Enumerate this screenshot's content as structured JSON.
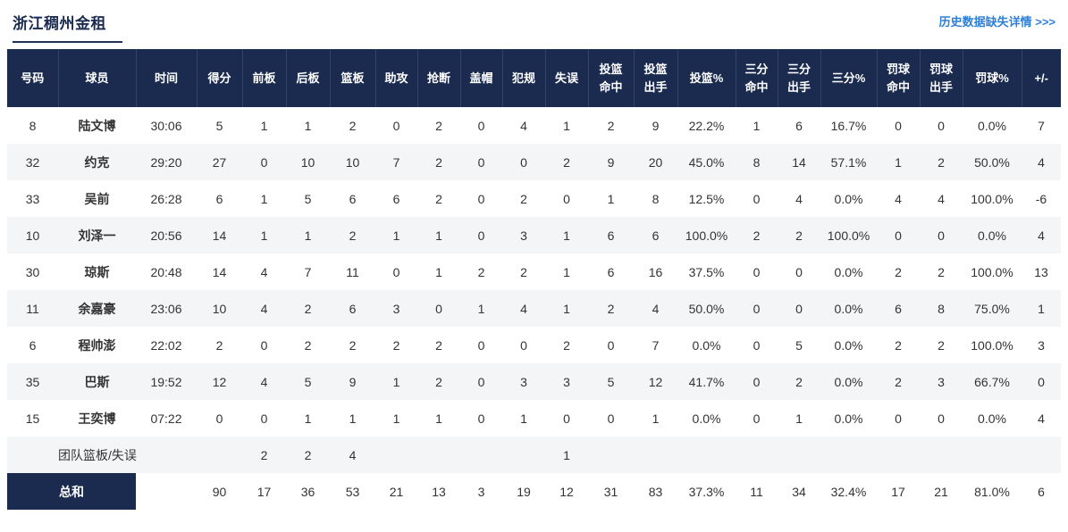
{
  "page": {
    "title": "浙江稠州金租",
    "history_link": "历史数据缺失详情 >>>"
  },
  "colors": {
    "header_navy": "#1b2b4f",
    "link_blue": "#2e7fd8",
    "row_alt_gray": "#f4f5f7",
    "text_dark": "#333333"
  },
  "table": {
    "headers": [
      "号码",
      "球员",
      "时间",
      "得分",
      "前板",
      "后板",
      "篮板",
      "助攻",
      "抢断",
      "盖帽",
      "犯规",
      "失误",
      "投篮\n命中",
      "投篮\n出手",
      "投篮%",
      "三分\n命中",
      "三分\n出手",
      "三分%",
      "罚球\n命中",
      "罚球\n出手",
      "罚球%",
      "+/-"
    ],
    "player_rows": [
      [
        "8",
        "陆文博",
        "30:06",
        "5",
        "1",
        "1",
        "2",
        "0",
        "2",
        "0",
        "4",
        "1",
        "2",
        "9",
        "22.2%",
        "1",
        "6",
        "16.7%",
        "0",
        "0",
        "0.0%",
        "7"
      ],
      [
        "32",
        "约克",
        "29:20",
        "27",
        "0",
        "10",
        "10",
        "7",
        "2",
        "0",
        "0",
        "2",
        "9",
        "20",
        "45.0%",
        "8",
        "14",
        "57.1%",
        "1",
        "2",
        "50.0%",
        "4"
      ],
      [
        "33",
        "吴前",
        "26:28",
        "6",
        "1",
        "5",
        "6",
        "6",
        "2",
        "0",
        "2",
        "0",
        "1",
        "8",
        "12.5%",
        "0",
        "4",
        "0.0%",
        "4",
        "4",
        "100.0%",
        "-6"
      ],
      [
        "10",
        "刘泽一",
        "20:56",
        "14",
        "1",
        "1",
        "2",
        "1",
        "1",
        "0",
        "3",
        "1",
        "6",
        "6",
        "100.0%",
        "2",
        "2",
        "100.0%",
        "0",
        "0",
        "0.0%",
        "4"
      ],
      [
        "30",
        "琼斯",
        "20:48",
        "14",
        "4",
        "7",
        "11",
        "0",
        "1",
        "2",
        "2",
        "1",
        "6",
        "16",
        "37.5%",
        "0",
        "0",
        "0.0%",
        "2",
        "2",
        "100.0%",
        "13"
      ],
      [
        "11",
        "余嘉豪",
        "23:06",
        "10",
        "4",
        "2",
        "6",
        "3",
        "0",
        "1",
        "4",
        "1",
        "2",
        "4",
        "50.0%",
        "0",
        "0",
        "0.0%",
        "6",
        "8",
        "75.0%",
        "1"
      ],
      [
        "6",
        "程帅澎",
        "22:02",
        "2",
        "0",
        "2",
        "2",
        "2",
        "2",
        "0",
        "0",
        "2",
        "0",
        "7",
        "0.0%",
        "0",
        "5",
        "0.0%",
        "2",
        "2",
        "100.0%",
        "3"
      ],
      [
        "35",
        "巴斯",
        "19:52",
        "12",
        "4",
        "5",
        "9",
        "1",
        "2",
        "0",
        "3",
        "3",
        "5",
        "12",
        "41.7%",
        "0",
        "2",
        "0.0%",
        "2",
        "3",
        "66.7%",
        "0"
      ],
      [
        "15",
        "王奕博",
        "07:22",
        "0",
        "0",
        "1",
        "1",
        "1",
        "1",
        "0",
        "1",
        "0",
        "0",
        "1",
        "0.0%",
        "0",
        "1",
        "0.0%",
        "0",
        "0",
        "0.0%",
        "4"
      ]
    ],
    "team_row": {
      "cells": [
        "",
        "团队篮板/失误",
        "",
        "",
        "2",
        "2",
        "4",
        "",
        "",
        "",
        "",
        "1",
        "",
        "",
        "",
        "",
        "",
        "",
        "",
        "",
        "",
        ""
      ]
    },
    "total_row": {
      "label": "总和",
      "values": [
        "",
        "90",
        "17",
        "36",
        "53",
        "21",
        "13",
        "3",
        "19",
        "12",
        "31",
        "83",
        "37.3%",
        "11",
        "34",
        "32.4%",
        "17",
        "21",
        "81.0%",
        "6"
      ]
    }
  }
}
